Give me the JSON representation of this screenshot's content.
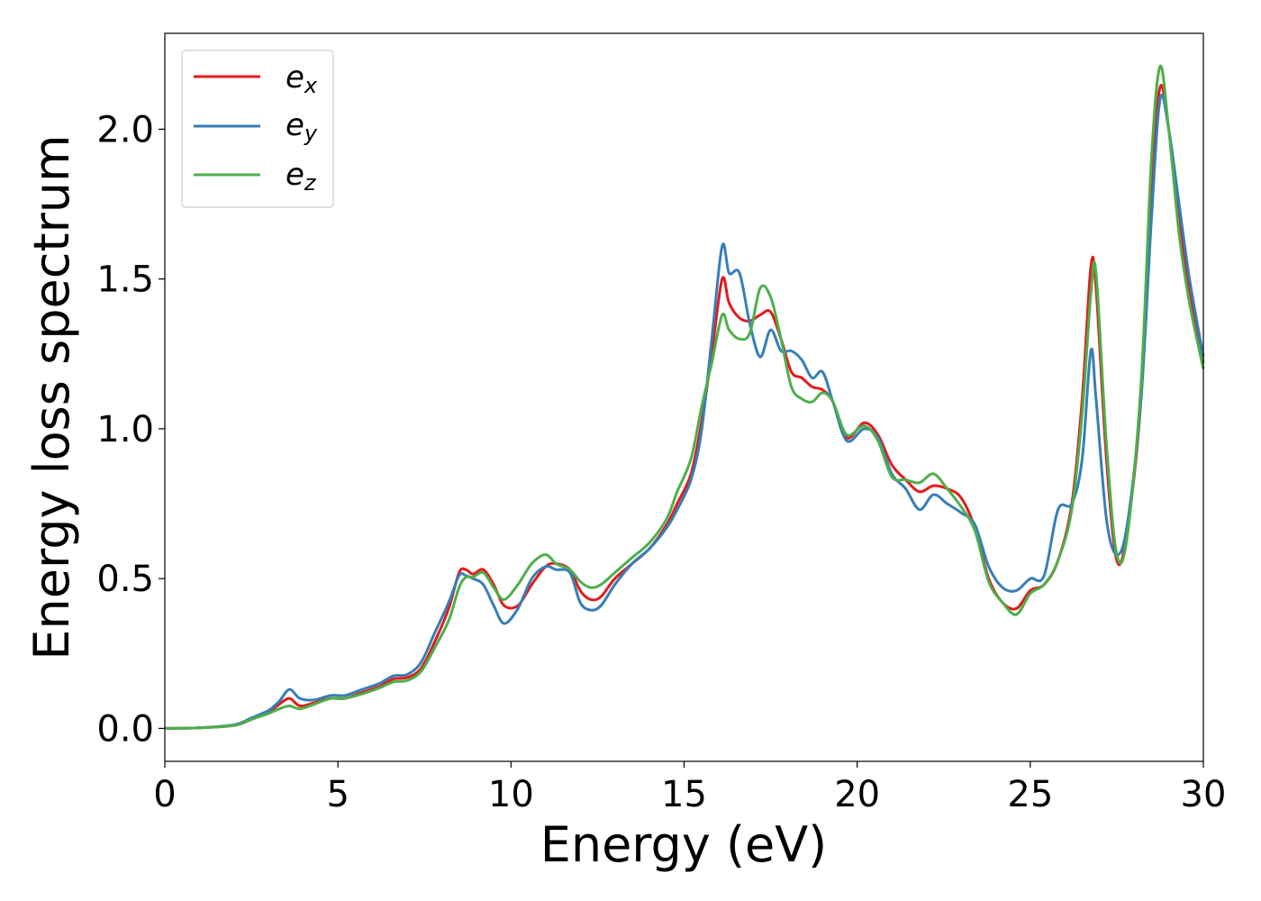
{
  "chart_data": {
    "type": "line",
    "title": "",
    "xlabel": "Energy (eV)",
    "ylabel": "Energy loss spectrum",
    "xlim": [
      0,
      30
    ],
    "ylim": [
      -0.11,
      2.32
    ],
    "xticks": [
      0,
      5,
      10,
      15,
      20,
      25,
      30
    ],
    "xtick_labels": [
      "0",
      "5",
      "10",
      "15",
      "20",
      "25",
      "30"
    ],
    "yticks": [
      0.0,
      0.5,
      1.0,
      1.5,
      2.0
    ],
    "ytick_labels": [
      "0.0",
      "0.5",
      "1.0",
      "1.5",
      "2.0"
    ],
    "grid": false,
    "legend_position": "top-left",
    "series": [
      {
        "name": "e_x",
        "legend_main": "e",
        "legend_sub": "x",
        "color": "#e41a1c",
        "points": [
          [
            0,
            0.0
          ],
          [
            1,
            0.002
          ],
          [
            2,
            0.01
          ],
          [
            2.5,
            0.03
          ],
          [
            3,
            0.055
          ],
          [
            3.3,
            0.08
          ],
          [
            3.6,
            0.1
          ],
          [
            3.9,
            0.075
          ],
          [
            4.3,
            0.085
          ],
          [
            4.8,
            0.1
          ],
          [
            5.2,
            0.1
          ],
          [
            5.7,
            0.12
          ],
          [
            6.2,
            0.14
          ],
          [
            6.6,
            0.165
          ],
          [
            7.0,
            0.17
          ],
          [
            7.4,
            0.2
          ],
          [
            7.8,
            0.29
          ],
          [
            8.2,
            0.4
          ],
          [
            8.5,
            0.52
          ],
          [
            8.7,
            0.53
          ],
          [
            8.9,
            0.515
          ],
          [
            9.2,
            0.53
          ],
          [
            9.5,
            0.48
          ],
          [
            9.8,
            0.41
          ],
          [
            10.2,
            0.41
          ],
          [
            10.6,
            0.48
          ],
          [
            11.0,
            0.54
          ],
          [
            11.3,
            0.55
          ],
          [
            11.7,
            0.53
          ],
          [
            12.0,
            0.46
          ],
          [
            12.3,
            0.43
          ],
          [
            12.6,
            0.44
          ],
          [
            13.0,
            0.5
          ],
          [
            13.5,
            0.55
          ],
          [
            14.0,
            0.6
          ],
          [
            14.5,
            0.68
          ],
          [
            14.8,
            0.75
          ],
          [
            15.2,
            0.85
          ],
          [
            15.5,
            1.02
          ],
          [
            15.8,
            1.25
          ],
          [
            16.1,
            1.5
          ],
          [
            16.3,
            1.42
          ],
          [
            16.6,
            1.37
          ],
          [
            16.9,
            1.36
          ],
          [
            17.2,
            1.38
          ],
          [
            17.5,
            1.39
          ],
          [
            17.8,
            1.3
          ],
          [
            18.1,
            1.19
          ],
          [
            18.4,
            1.17
          ],
          [
            18.7,
            1.14
          ],
          [
            19.0,
            1.13
          ],
          [
            19.3,
            1.09
          ],
          [
            19.7,
            0.97
          ],
          [
            20.2,
            1.02
          ],
          [
            20.6,
            0.98
          ],
          [
            21.0,
            0.88
          ],
          [
            21.4,
            0.83
          ],
          [
            21.8,
            0.79
          ],
          [
            22.2,
            0.81
          ],
          [
            22.6,
            0.8
          ],
          [
            23.0,
            0.77
          ],
          [
            23.4,
            0.67
          ],
          [
            23.8,
            0.5
          ],
          [
            24.2,
            0.42
          ],
          [
            24.6,
            0.4
          ],
          [
            25.0,
            0.46
          ],
          [
            25.4,
            0.48
          ],
          [
            25.8,
            0.56
          ],
          [
            26.2,
            0.75
          ],
          [
            26.5,
            1.1
          ],
          [
            26.75,
            1.54
          ],
          [
            26.9,
            1.47
          ],
          [
            27.2,
            0.9
          ],
          [
            27.5,
            0.56
          ],
          [
            27.8,
            0.66
          ],
          [
            28.2,
            1.1
          ],
          [
            28.5,
            1.8
          ],
          [
            28.75,
            2.14
          ],
          [
            29.0,
            2.0
          ],
          [
            29.3,
            1.7
          ],
          [
            29.6,
            1.45
          ],
          [
            30.0,
            1.22
          ]
        ]
      },
      {
        "name": "e_y",
        "legend_main": "e",
        "legend_sub": "y",
        "color": "#377eb8",
        "points": [
          [
            0,
            0.0
          ],
          [
            1,
            0.002
          ],
          [
            2,
            0.012
          ],
          [
            2.5,
            0.035
          ],
          [
            3,
            0.06
          ],
          [
            3.3,
            0.09
          ],
          [
            3.6,
            0.13
          ],
          [
            3.9,
            0.1
          ],
          [
            4.3,
            0.095
          ],
          [
            4.8,
            0.11
          ],
          [
            5.2,
            0.11
          ],
          [
            5.7,
            0.13
          ],
          [
            6.2,
            0.15
          ],
          [
            6.6,
            0.175
          ],
          [
            7.0,
            0.18
          ],
          [
            7.4,
            0.22
          ],
          [
            7.8,
            0.32
          ],
          [
            8.2,
            0.42
          ],
          [
            8.5,
            0.51
          ],
          [
            8.7,
            0.51
          ],
          [
            8.9,
            0.5
          ],
          [
            9.2,
            0.48
          ],
          [
            9.5,
            0.41
          ],
          [
            9.8,
            0.35
          ],
          [
            10.2,
            0.4
          ],
          [
            10.6,
            0.5
          ],
          [
            11.0,
            0.54
          ],
          [
            11.3,
            0.53
          ],
          [
            11.7,
            0.52
          ],
          [
            12.0,
            0.42
          ],
          [
            12.3,
            0.395
          ],
          [
            12.6,
            0.41
          ],
          [
            13.0,
            0.48
          ],
          [
            13.5,
            0.55
          ],
          [
            14.0,
            0.6
          ],
          [
            14.5,
            0.67
          ],
          [
            14.8,
            0.73
          ],
          [
            15.2,
            0.83
          ],
          [
            15.5,
            0.99
          ],
          [
            15.8,
            1.3
          ],
          [
            16.1,
            1.61
          ],
          [
            16.3,
            1.52
          ],
          [
            16.6,
            1.52
          ],
          [
            16.9,
            1.35
          ],
          [
            17.2,
            1.24
          ],
          [
            17.5,
            1.33
          ],
          [
            17.8,
            1.26
          ],
          [
            18.1,
            1.26
          ],
          [
            18.4,
            1.23
          ],
          [
            18.7,
            1.17
          ],
          [
            19.0,
            1.19
          ],
          [
            19.3,
            1.09
          ],
          [
            19.7,
            0.96
          ],
          [
            20.2,
            1.0
          ],
          [
            20.6,
            0.97
          ],
          [
            21.0,
            0.85
          ],
          [
            21.4,
            0.8
          ],
          [
            21.8,
            0.73
          ],
          [
            22.2,
            0.78
          ],
          [
            22.6,
            0.75
          ],
          [
            23.0,
            0.72
          ],
          [
            23.4,
            0.68
          ],
          [
            23.8,
            0.54
          ],
          [
            24.2,
            0.47
          ],
          [
            24.6,
            0.46
          ],
          [
            25.0,
            0.5
          ],
          [
            25.4,
            0.51
          ],
          [
            25.8,
            0.73
          ],
          [
            26.2,
            0.75
          ],
          [
            26.5,
            0.9
          ],
          [
            26.75,
            1.26
          ],
          [
            26.9,
            1.1
          ],
          [
            27.2,
            0.7
          ],
          [
            27.5,
            0.58
          ],
          [
            27.8,
            0.68
          ],
          [
            28.2,
            1.1
          ],
          [
            28.5,
            1.7
          ],
          [
            28.75,
            2.1
          ],
          [
            29.0,
            2.0
          ],
          [
            29.3,
            1.75
          ],
          [
            29.6,
            1.5
          ],
          [
            30.0,
            1.24
          ]
        ]
      },
      {
        "name": "e_z",
        "legend_main": "e",
        "legend_sub": "z",
        "color": "#4daf4a",
        "points": [
          [
            0,
            0.0
          ],
          [
            1,
            0.002
          ],
          [
            2,
            0.01
          ],
          [
            2.5,
            0.03
          ],
          [
            3,
            0.05
          ],
          [
            3.3,
            0.065
          ],
          [
            3.6,
            0.075
          ],
          [
            3.9,
            0.065
          ],
          [
            4.3,
            0.08
          ],
          [
            4.8,
            0.1
          ],
          [
            5.2,
            0.1
          ],
          [
            5.7,
            0.115
          ],
          [
            6.2,
            0.135
          ],
          [
            6.6,
            0.155
          ],
          [
            7.0,
            0.16
          ],
          [
            7.4,
            0.19
          ],
          [
            7.8,
            0.27
          ],
          [
            8.2,
            0.36
          ],
          [
            8.5,
            0.47
          ],
          [
            8.7,
            0.505
          ],
          [
            8.9,
            0.505
          ],
          [
            9.2,
            0.52
          ],
          [
            9.5,
            0.47
          ],
          [
            9.8,
            0.43
          ],
          [
            10.2,
            0.48
          ],
          [
            10.6,
            0.55
          ],
          [
            11.0,
            0.58
          ],
          [
            11.3,
            0.55
          ],
          [
            11.7,
            0.53
          ],
          [
            12.0,
            0.49
          ],
          [
            12.3,
            0.47
          ],
          [
            12.6,
            0.48
          ],
          [
            13.0,
            0.52
          ],
          [
            13.5,
            0.57
          ],
          [
            14.0,
            0.62
          ],
          [
            14.5,
            0.7
          ],
          [
            14.8,
            0.79
          ],
          [
            15.2,
            0.9
          ],
          [
            15.5,
            1.07
          ],
          [
            15.8,
            1.22
          ],
          [
            16.1,
            1.38
          ],
          [
            16.3,
            1.33
          ],
          [
            16.6,
            1.3
          ],
          [
            16.9,
            1.32
          ],
          [
            17.2,
            1.47
          ],
          [
            17.5,
            1.44
          ],
          [
            17.8,
            1.3
          ],
          [
            18.1,
            1.14
          ],
          [
            18.4,
            1.1
          ],
          [
            18.7,
            1.09
          ],
          [
            19.0,
            1.12
          ],
          [
            19.3,
            1.09
          ],
          [
            19.7,
            0.98
          ],
          [
            20.2,
            1.01
          ],
          [
            20.6,
            0.96
          ],
          [
            21.0,
            0.84
          ],
          [
            21.4,
            0.83
          ],
          [
            21.8,
            0.82
          ],
          [
            22.2,
            0.85
          ],
          [
            22.6,
            0.8
          ],
          [
            23.0,
            0.74
          ],
          [
            23.4,
            0.66
          ],
          [
            23.8,
            0.49
          ],
          [
            24.2,
            0.42
          ],
          [
            24.6,
            0.38
          ],
          [
            25.0,
            0.45
          ],
          [
            25.4,
            0.48
          ],
          [
            25.8,
            0.56
          ],
          [
            26.2,
            0.73
          ],
          [
            26.5,
            1.05
          ],
          [
            26.75,
            1.45
          ],
          [
            26.9,
            1.52
          ],
          [
            27.2,
            0.95
          ],
          [
            27.5,
            0.58
          ],
          [
            27.8,
            0.64
          ],
          [
            28.2,
            1.15
          ],
          [
            28.5,
            1.9
          ],
          [
            28.75,
            2.21
          ],
          [
            29.0,
            2.0
          ],
          [
            29.3,
            1.65
          ],
          [
            29.6,
            1.42
          ],
          [
            30.0,
            1.2
          ]
        ]
      }
    ]
  }
}
